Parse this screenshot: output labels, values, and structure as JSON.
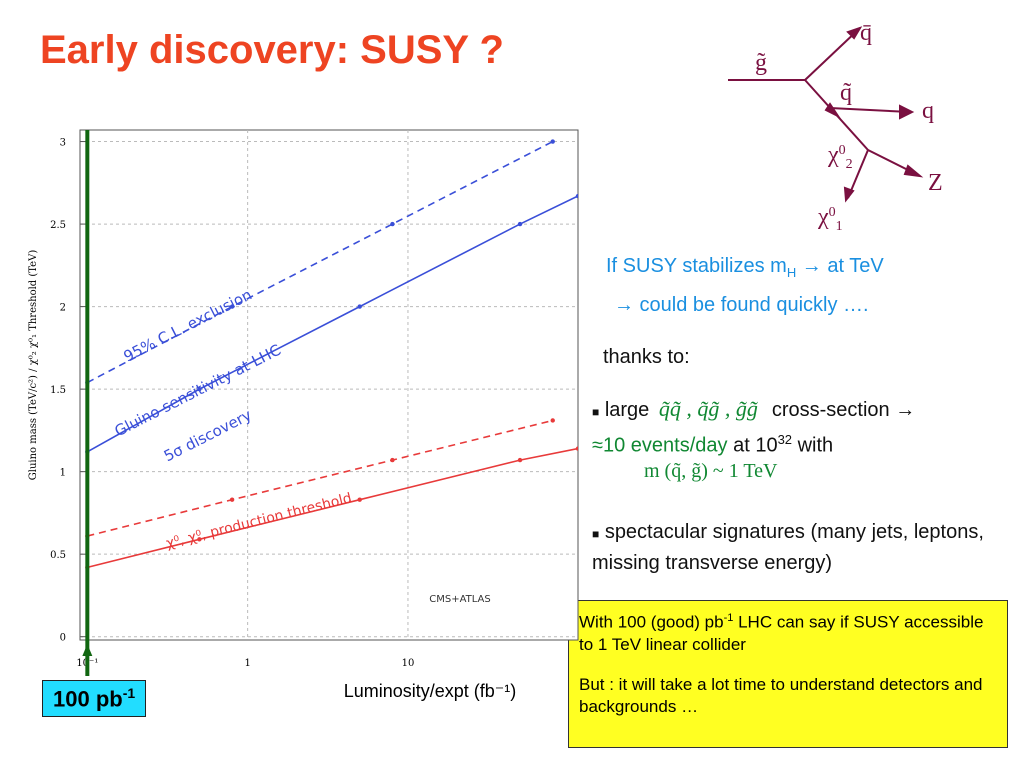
{
  "title": "Early discovery: SUSY ?",
  "diagram": {
    "gluino": "g̃",
    "antiquark": "q̄",
    "squark": "q̃",
    "quark": "q",
    "chi2": {
      "base": "χ",
      "sup": "0",
      "sub": "2"
    },
    "z": "Z",
    "chi1": {
      "base": "χ",
      "sup": "0",
      "sub": "1"
    }
  },
  "motivation": {
    "a": "If SUSY stabilizes m",
    "sub": "H",
    "b": " → at TeV",
    "c": "→ could be found quickly …."
  },
  "thanks": "thanks to:",
  "bullet1": {
    "a": "large",
    "formula": "q̃q̃ , q̃g̃ , g̃g̃",
    "b": "cross-section →",
    "c": "≈10 events/day",
    "d": "at  10",
    "e": "32",
    "f": "with",
    "g": "m (q̃, g̃) ~ 1  TeV"
  },
  "bullet2": "spectacular signatures (many jets, leptons, missing transverse energy)",
  "box": {
    "a": "With 100 (good) pb",
    "sup": "-1",
    "b": "  LHC can say if SUSY accessible to 1 TeV linear collider",
    "c": "But : it will take a lot time to understand detectors and backgrounds …"
  },
  "marker": {
    "label": "100 pb",
    "sup": "-1"
  },
  "chart_data": {
    "type": "line",
    "xscale": "log",
    "xlabel": "Luminosity/expt (fb⁻¹)",
    "ylabel": "Gluino mass (TeV/c²) / χ⁰₂ χ⁰₁ Threshold (TeV)",
    "xlim": [
      0.09,
      115
    ],
    "ylim": [
      -0.02,
      3.07
    ],
    "xticks": [
      {
        "value": 0.1,
        "label": "10⁻¹"
      },
      1,
      10
    ],
    "yticks": [
      0,
      0.5,
      1,
      1.5,
      2,
      2.5,
      3
    ],
    "grid": true,
    "vline": 0.1,
    "annotations": [
      "95% C.L. exclusion",
      "Gluino sensitivity at LHC",
      "5σ discovery",
      "χ⁰, χ⁰, production threshold",
      "CMS+ATLAS"
    ],
    "series": [
      {
        "color": "#3a4fd8",
        "dashed": true,
        "x": [
          0.1,
          0.8,
          8,
          80
        ],
        "values": [
          1.54,
          2.0,
          2.5,
          3.0
        ]
      },
      {
        "color": "#3a4fd8",
        "dashed": false,
        "x": [
          0.1,
          0.5,
          5,
          50,
          115
        ],
        "values": [
          1.12,
          1.5,
          2.0,
          2.5,
          2.67
        ]
      },
      {
        "color": "#e83a3a",
        "dashed": true,
        "x": [
          0.1,
          0.8,
          8,
          80
        ],
        "values": [
          0.61,
          0.83,
          1.07,
          1.31
        ]
      },
      {
        "color": "#e83a3a",
        "dashed": false,
        "x": [
          0.1,
          0.5,
          5,
          50,
          115
        ],
        "values": [
          0.42,
          0.59,
          0.83,
          1.07,
          1.14
        ]
      }
    ]
  }
}
